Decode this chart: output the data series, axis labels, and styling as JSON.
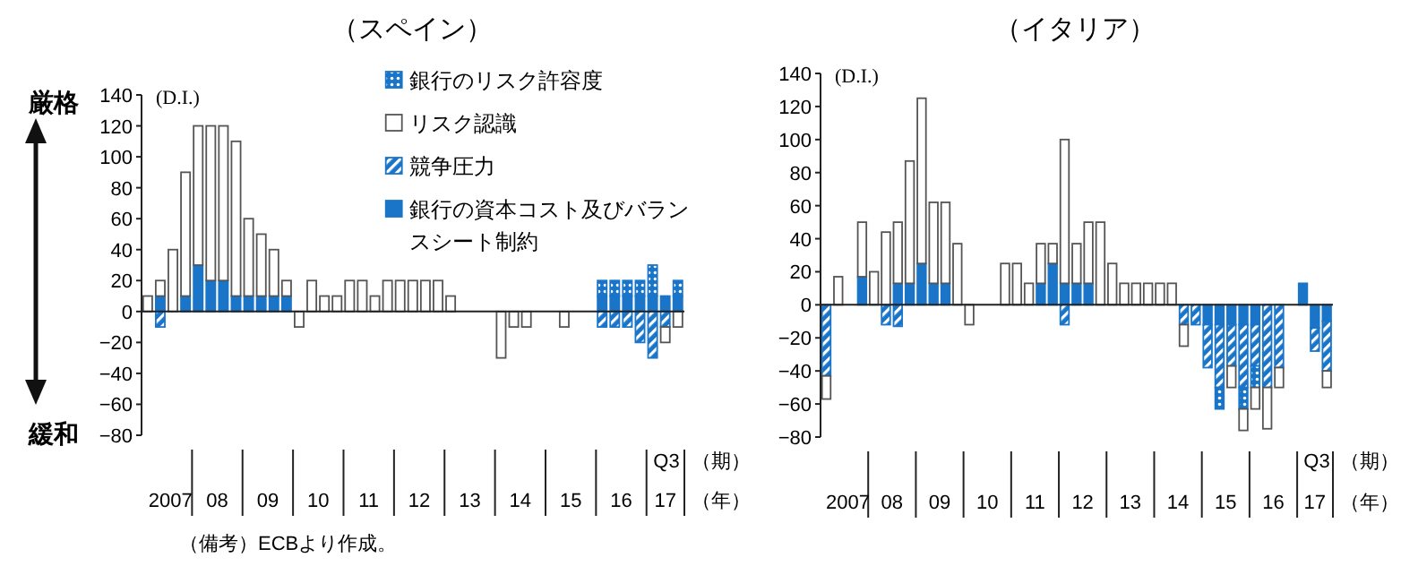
{
  "chart_data": [
    {
      "type": "bar",
      "title": "（スペイン）",
      "ylabel": "(D.I.)",
      "xlabel": "（年）",
      "stacked": true,
      "legend": "top right",
      "annotations": [
        "厳格",
        "緩和",
        "（期）",
        "（備考）ECBより作成。",
        "Q3"
      ],
      "x": [
        "2007-02-15",
        "2007-05-15",
        "2007-08-15",
        "2007-11-15",
        "2008-02-15",
        "2008-05-15",
        "2008-08-15",
        "2008-11-15",
        "2009-02-15",
        "2009-05-15",
        "2009-08-15",
        "2009-11-15",
        "2010-02-15",
        "2010-05-15",
        "2010-08-15",
        "2010-11-15",
        "2011-02-15",
        "2011-05-15",
        "2011-08-15",
        "2011-11-15",
        "2012-02-15",
        "2012-05-15",
        "2012-08-15",
        "2012-11-15",
        "2013-02-15",
        "2013-05-15",
        "2013-08-15",
        "2013-11-15",
        "2014-02-15",
        "2014-05-15",
        "2014-08-15",
        "2014-11-15",
        "2015-02-15",
        "2015-05-15",
        "2015-08-15",
        "2015-11-15",
        "2016-02-15",
        "2016-05-15",
        "2016-08-15",
        "2016-11-15",
        "2017-02-15",
        "2017-05-15",
        "2017-08-15"
      ],
      "xlim": [
        "2007-01-01",
        "2017-10-01"
      ],
      "xticks": [
        {
          "value": "2007-07-01",
          "label": "2007"
        },
        {
          "value": "2008-07-01",
          "label": "08"
        },
        {
          "value": "2009-07-01",
          "label": "09"
        },
        {
          "value": "2010-07-01",
          "label": "10"
        },
        {
          "value": "2011-07-01",
          "label": "11"
        },
        {
          "value": "2012-07-01",
          "label": "12"
        },
        {
          "value": "2013-07-01",
          "label": "13"
        },
        {
          "value": "2014-07-01",
          "label": "14"
        },
        {
          "value": "2015-07-01",
          "label": "15"
        },
        {
          "value": "2016-07-01",
          "label": "16"
        },
        {
          "value": "2017-05-15",
          "label": "17"
        }
      ],
      "ylim": [
        -80,
        140
      ],
      "yticks": [
        {
          "value": -80,
          "label": "−80"
        },
        {
          "value": -60,
          "label": "−60"
        },
        {
          "value": -40,
          "label": "−40"
        },
        {
          "value": -20,
          "label": "−20"
        },
        0,
        20,
        40,
        60,
        80,
        100,
        120,
        140
      ],
      "series": [
        {
          "name": "銀行の資本コスト及びバランスシート制約",
          "color": "#1a75c9",
          "values": [
            null,
            10,
            null,
            10,
            30,
            20,
            20,
            10,
            10,
            10,
            10,
            10,
            null,
            null,
            null,
            null,
            null,
            null,
            null,
            null,
            null,
            null,
            null,
            null,
            null,
            null,
            null,
            null,
            null,
            null,
            null,
            null,
            null,
            null,
            null,
            null,
            10,
            10,
            10,
            10,
            10,
            10,
            10
          ]
        },
        {
          "name": "競争圧力",
          "color": "#1a75c9",
          "values": [
            null,
            -10,
            null,
            null,
            null,
            null,
            null,
            null,
            null,
            null,
            null,
            null,
            null,
            null,
            null,
            null,
            null,
            null,
            null,
            null,
            null,
            null,
            null,
            null,
            null,
            null,
            null,
            null,
            null,
            null,
            null,
            null,
            null,
            null,
            null,
            null,
            -10,
            -10,
            -10,
            -20,
            -30,
            -10,
            null
          ]
        },
        {
          "name": "銀行のリスク許容度",
          "color": "#1a75c9",
          "values": [
            null,
            null,
            null,
            null,
            null,
            null,
            null,
            null,
            null,
            null,
            null,
            null,
            null,
            null,
            null,
            null,
            null,
            null,
            null,
            null,
            null,
            null,
            null,
            null,
            null,
            null,
            null,
            null,
            null,
            null,
            null,
            null,
            null,
            null,
            null,
            null,
            10,
            10,
            10,
            10,
            20,
            null,
            10
          ]
        },
        {
          "name": "リスク認識",
          "color": "#ffffff",
          "values": [
            10,
            10,
            40,
            80,
            90,
            100,
            100,
            100,
            50,
            40,
            30,
            10,
            -10,
            20,
            10,
            10,
            20,
            20,
            10,
            20,
            20,
            20,
            20,
            20,
            10,
            null,
            null,
            null,
            -30,
            -10,
            -10,
            null,
            null,
            -10,
            null,
            null,
            null,
            null,
            null,
            null,
            null,
            -10,
            -10
          ]
        }
      ]
    },
    {
      "type": "bar",
      "title": "（イタリア）",
      "ylabel": "(D.I.)",
      "xlabel": "（年）",
      "stacked": true,
      "annotations": [
        "（期）",
        "Q3"
      ],
      "x": [
        "2007-02-15",
        "2007-05-15",
        "2007-08-15",
        "2007-11-15",
        "2008-02-15",
        "2008-05-15",
        "2008-08-15",
        "2008-11-15",
        "2009-02-15",
        "2009-05-15",
        "2009-08-15",
        "2009-11-15",
        "2010-02-15",
        "2010-05-15",
        "2010-08-15",
        "2010-11-15",
        "2011-02-15",
        "2011-05-15",
        "2011-08-15",
        "2011-11-15",
        "2012-02-15",
        "2012-05-15",
        "2012-08-15",
        "2012-11-15",
        "2013-02-15",
        "2013-05-15",
        "2013-08-15",
        "2013-11-15",
        "2014-02-15",
        "2014-05-15",
        "2014-08-15",
        "2014-11-15",
        "2015-02-15",
        "2015-05-15",
        "2015-08-15",
        "2015-11-15",
        "2016-02-15",
        "2016-05-15",
        "2016-08-15",
        "2016-11-15",
        "2017-02-15",
        "2017-05-15",
        "2017-08-15"
      ],
      "xlim": [
        "2007-01-01",
        "2017-10-01"
      ],
      "xticks": [
        {
          "value": "2007-07-01",
          "label": "2007"
        },
        {
          "value": "2008-07-01",
          "label": "08"
        },
        {
          "value": "2009-07-01",
          "label": "09"
        },
        {
          "value": "2010-07-01",
          "label": "10"
        },
        {
          "value": "2011-07-01",
          "label": "11"
        },
        {
          "value": "2012-07-01",
          "label": "12"
        },
        {
          "value": "2013-07-01",
          "label": "13"
        },
        {
          "value": "2014-07-01",
          "label": "14"
        },
        {
          "value": "2015-07-01",
          "label": "15"
        },
        {
          "value": "2016-07-01",
          "label": "16"
        },
        {
          "value": "2017-05-15",
          "label": "17"
        }
      ],
      "ylim": [
        -80,
        140
      ],
      "yticks": [
        {
          "value": -80,
          "label": "−80"
        },
        {
          "value": -60,
          "label": "−60"
        },
        {
          "value": -40,
          "label": "−40"
        },
        {
          "value": -20,
          "label": "−20"
        },
        0,
        20,
        40,
        60,
        80,
        100,
        120,
        140
      ],
      "series": [
        {
          "color": "#1a75c9",
          "values": [
            null,
            null,
            null,
            17,
            null,
            null,
            13,
            13,
            25,
            13,
            13,
            null,
            null,
            null,
            null,
            null,
            null,
            null,
            13,
            25,
            13,
            13,
            13,
            null,
            null,
            null,
            null,
            null,
            null,
            null,
            null,
            null,
            -12,
            -12,
            -12,
            -12,
            -12,
            null,
            null,
            null,
            13,
            -14,
            -10
          ]
        },
        {
          "color": "#1a75c9",
          "values": [
            -43,
            null,
            null,
            null,
            null,
            -12,
            -13,
            null,
            null,
            null,
            null,
            null,
            null,
            null,
            null,
            null,
            null,
            null,
            null,
            null,
            -12,
            null,
            null,
            null,
            null,
            null,
            null,
            null,
            null,
            null,
            -12,
            -12,
            -26,
            -38,
            -25,
            -38,
            -25,
            -50,
            -38,
            null,
            null,
            -14,
            -30
          ]
        },
        {
          "color": "#1a75c9",
          "values": [
            null,
            null,
            null,
            null,
            null,
            null,
            null,
            null,
            null,
            null,
            null,
            null,
            null,
            null,
            null,
            null,
            null,
            null,
            null,
            null,
            null,
            null,
            null,
            null,
            null,
            null,
            null,
            null,
            null,
            null,
            null,
            null,
            null,
            -13,
            null,
            -13,
            -13,
            null,
            null,
            null,
            null,
            null,
            null
          ]
        },
        {
          "color": "#ffffff",
          "values": [
            -14,
            17,
            null,
            33,
            20,
            44,
            37,
            74,
            100,
            49,
            49,
            37,
            -12,
            null,
            null,
            25,
            25,
            13,
            24,
            12,
            87,
            24,
            37,
            50,
            25,
            13,
            13,
            13,
            13,
            13,
            -13,
            null,
            null,
            null,
            -13,
            -13,
            -13,
            -25,
            -12,
            null,
            null,
            null,
            -10
          ]
        }
      ]
    }
  ]
}
